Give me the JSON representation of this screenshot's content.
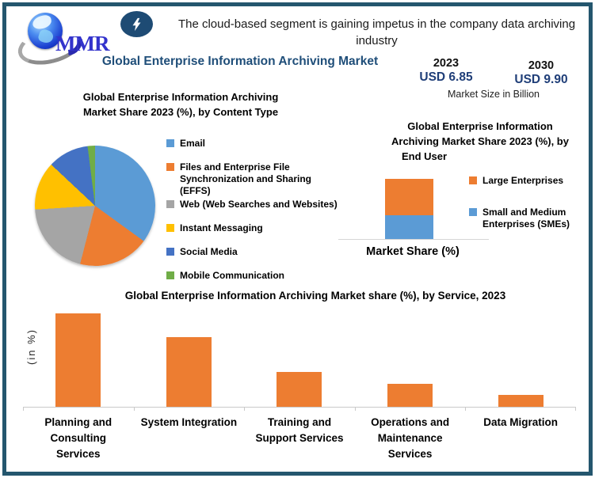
{
  "header": {
    "logo_text": "MMR",
    "headline_lines": [
      "The cloud-based segment is gaining impetus in the company data archiving",
      "industry"
    ],
    "title": "Global Enterprise Information Archiving Market",
    "market_size": {
      "year_start": "2023",
      "year_end": "2030",
      "value_start": "USD 6.85",
      "value_end": "USD 9.90",
      "caption": "Market Size in Billion"
    }
  },
  "colors": {
    "frame_border": "#24566E",
    "navy_title": "#1F4E79",
    "value_navy": "#1F3E78",
    "bolt_badge": "#1E4B74",
    "logo_blue": "#3333CC",
    "axis_gray": "#C9C9C9",
    "orange": "#ED7D31",
    "light_blue": "#5B9BD5"
  },
  "chart_data": [
    {
      "id": "content-type-pie",
      "type": "pie",
      "title_lines": [
        "Global Enterprise Information Archiving",
        "Market Share 2023 (%), by Content Type"
      ],
      "labels": [
        "Email",
        "Files and Enterprise File Synchronization and Sharing (EFFS)",
        "Web (Web Searches and Websites)",
        "Instant Messaging",
        "Social Media",
        "Mobile Communication"
      ],
      "values": [
        35,
        19,
        20,
        13,
        11,
        2
      ],
      "colors": [
        "#5B9BD5",
        "#ED7D31",
        "#A5A5A5",
        "#FFC000",
        "#4472C4",
        "#70AD47"
      ],
      "units": "%",
      "legend_position": "right"
    },
    {
      "id": "end-user-stacked-bar",
      "type": "bar",
      "subtype": "stacked",
      "title_lines": [
        "Global Enterprise Information",
        "Archiving Market Share 2023 (%), by",
        "End User"
      ],
      "categories": [
        "Market Share (%)"
      ],
      "series": [
        {
          "name": "Large Enterprises",
          "value": 60,
          "color": "#ED7D31"
        },
        {
          "name": "Small and Medium Enterprises (SMEs)",
          "value": 40,
          "color": "#5B9BD5"
        }
      ],
      "xlabel": "Market Share (%)",
      "units": "%",
      "legend_position": "right"
    },
    {
      "id": "service-bar-chart",
      "type": "bar",
      "title": "Global Enterprise Information Archiving Market share (%), by Service, 2023",
      "categories": [
        "Planning and Consulting Services",
        "System Integration",
        "Training and Support Services",
        "Operations and Maintenance Services",
        "Data Migration"
      ],
      "values": [
        40,
        30,
        15,
        10,
        5
      ],
      "ylabel": "(in %)",
      "bar_color": "#ED7D31",
      "ylim": [
        0,
        42
      ],
      "grid": false,
      "units": "%"
    }
  ]
}
